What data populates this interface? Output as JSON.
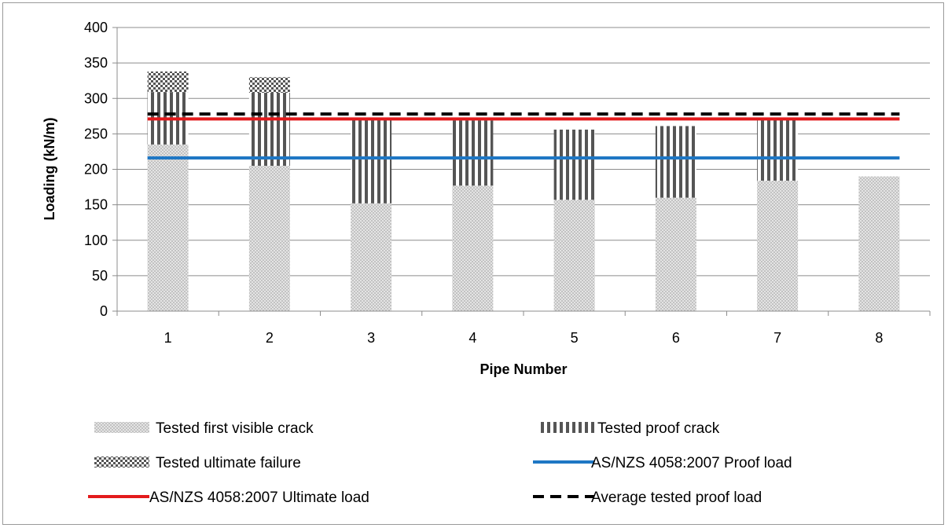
{
  "chart_data": {
    "type": "bar",
    "stacked": true,
    "categories": [
      "1",
      "2",
      "3",
      "4",
      "5",
      "6",
      "7",
      "8"
    ],
    "xlabel": "Pipe Number",
    "ylabel": "Loading (kN/m)",
    "ylim": [
      0,
      400
    ],
    "yticks": [
      0,
      50,
      100,
      150,
      200,
      250,
      300,
      350,
      400
    ],
    "grid": true,
    "legend_position": "bottom",
    "series": [
      {
        "name": "Tested first visible crack",
        "kind": "bar",
        "pattern": "fine-check",
        "values": [
          235,
          205,
          152,
          177,
          157,
          160,
          184,
          190
        ]
      },
      {
        "name": "Tested proof crack",
        "kind": "bar",
        "pattern": "vertical-stripes",
        "values": [
          74,
          103,
          118,
          92,
          99,
          101,
          86,
          0
        ]
      },
      {
        "name": "Tested ultimate failure",
        "kind": "bar",
        "pattern": "coarse-check",
        "values": [
          29,
          22,
          0,
          0,
          0,
          0,
          0,
          0
        ]
      },
      {
        "name": "AS/NZS 4058:2007 Proof load",
        "kind": "line",
        "color": "#1f77c4",
        "style": "solid",
        "value": 216
      },
      {
        "name": "AS/NZS 4058:2007 Ultimate load",
        "kind": "line",
        "color": "#e31a1c",
        "style": "solid",
        "value": 271
      },
      {
        "name": "Average tested proof load",
        "kind": "line",
        "color": "#000000",
        "style": "dashed",
        "value": 278
      }
    ]
  }
}
